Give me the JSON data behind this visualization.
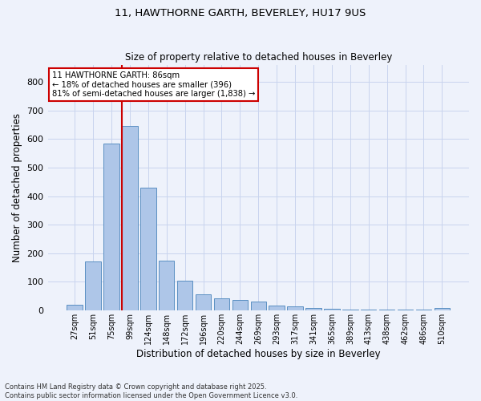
{
  "title": "11, HAWTHORNE GARTH, BEVERLEY, HU17 9US",
  "subtitle": "Size of property relative to detached houses in Beverley",
  "xlabel": "Distribution of detached houses by size in Beverley",
  "ylabel": "Number of detached properties",
  "bar_labels": [
    "27sqm",
    "51sqm",
    "75sqm",
    "99sqm",
    "124sqm",
    "148sqm",
    "172sqm",
    "196sqm",
    "220sqm",
    "244sqm",
    "269sqm",
    "293sqm",
    "317sqm",
    "341sqm",
    "365sqm",
    "389sqm",
    "413sqm",
    "438sqm",
    "462sqm",
    "486sqm",
    "510sqm"
  ],
  "bar_values": [
    20,
    170,
    585,
    645,
    430,
    175,
    103,
    55,
    42,
    37,
    30,
    17,
    14,
    9,
    4,
    3,
    2,
    1,
    1,
    1,
    7
  ],
  "bar_color": "#aec6e8",
  "bar_edge_color": "#5a8fc2",
  "vline_color": "#cc0000",
  "annotation_text": "11 HAWTHORNE GARTH: 86sqm\n← 18% of detached houses are smaller (396)\n81% of semi-detached houses are larger (1,838) →",
  "annotation_box_color": "#ffffff",
  "annotation_box_edgecolor": "#cc0000",
  "ylim": [
    0,
    860
  ],
  "yticks": [
    0,
    100,
    200,
    300,
    400,
    500,
    600,
    700,
    800
  ],
  "footer_line1": "Contains HM Land Registry data © Crown copyright and database right 2025.",
  "footer_line2": "Contains public sector information licensed under the Open Government Licence v3.0.",
  "background_color": "#eef2fb",
  "grid_color": "#c8d4ee"
}
